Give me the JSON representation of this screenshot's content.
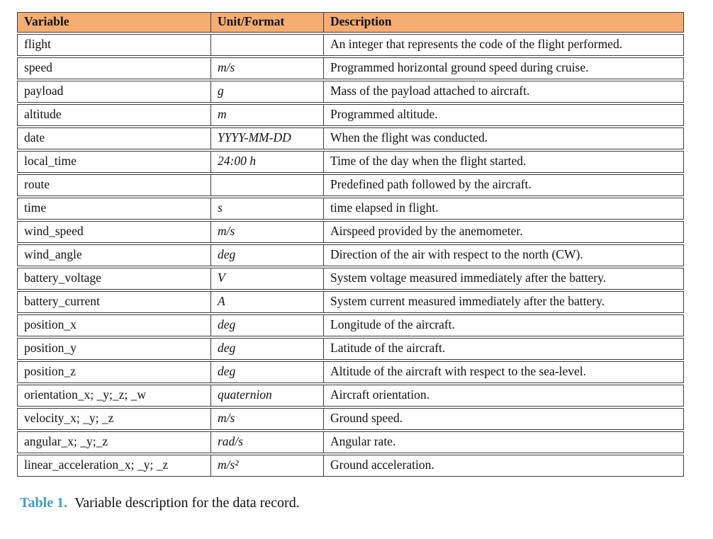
{
  "table": {
    "columns": [
      {
        "label": "Variable"
      },
      {
        "label": "Unit/Format"
      },
      {
        "label": "Description"
      }
    ],
    "rows": [
      {
        "variable": "flight",
        "unit": "",
        "description": "An integer that represents the code of the flight performed."
      },
      {
        "variable": "speed",
        "unit": "m/s",
        "description": "Programmed horizontal ground speed during cruise."
      },
      {
        "variable": "payload",
        "unit": "g",
        "description": "Mass of the payload attached to aircraft."
      },
      {
        "variable": "altitude",
        "unit": "m",
        "description": "Programmed altitude."
      },
      {
        "variable": "date",
        "unit": "YYYY-MM-DD",
        "description": "When the flight was conducted."
      },
      {
        "variable": "local_time",
        "unit": "24:00 h",
        "description": "Time of the day when the flight started."
      },
      {
        "variable": "route",
        "unit": "",
        "description": "Predefined path followed by the aircraft."
      },
      {
        "variable": "time",
        "unit": "s",
        "description": "time elapsed in flight."
      },
      {
        "variable": "wind_speed",
        "unit": "m/s",
        "description": "Airspeed provided by the anemometer."
      },
      {
        "variable": "wind_angle",
        "unit": "deg",
        "description": "Direction of the air with respect to the north (CW)."
      },
      {
        "variable": "battery_voltage",
        "unit": "V",
        "description": "System voltage measured immediately after the battery."
      },
      {
        "variable": "battery_current",
        "unit": "A",
        "description": "System current measured immediately after the battery."
      },
      {
        "variable": "position_x",
        "unit": "deg",
        "description": "Longitude of the aircraft."
      },
      {
        "variable": "position_y",
        "unit": "deg",
        "description": "Latitude of the aircraft."
      },
      {
        "variable": "position_z",
        "unit": "deg",
        "description": "Altitude of the aircraft with respect to the sea-level."
      },
      {
        "variable": "orientation_x; _y;_z; _w",
        "unit": "quaternion",
        "description": "Aircraft orientation."
      },
      {
        "variable": "velocity_x; _y; _z",
        "unit": "m/s",
        "description": "Ground speed."
      },
      {
        "variable": "angular_x; _y;_z",
        "unit": "rad/s",
        "description": "Angular rate."
      },
      {
        "variable": "linear_acceleration_x; _y; _z",
        "unit": "m/s²",
        "description": "Ground acceleration."
      }
    ]
  },
  "caption": {
    "label": "Table 1.",
    "text": "Variable description for the data record."
  },
  "colors": {
    "header_bg": "#F5AD72",
    "border": "#3D3D3D",
    "caption_label": "#3E9EC6"
  }
}
